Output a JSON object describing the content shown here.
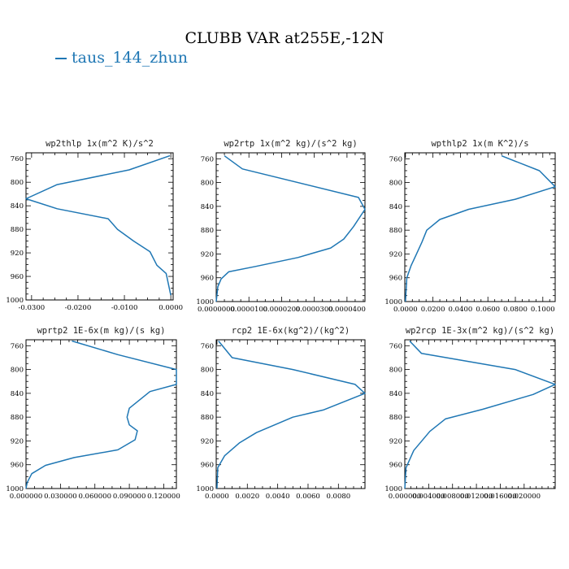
{
  "title": "CLUBB VAR at255E,-12N",
  "legend": {
    "label": "taus_144_zhun",
    "color": "#1f77b4"
  },
  "chart_data": [
    {
      "type": "line",
      "title": "wp2thlp   1x(m^2 K)/s^2",
      "xlim": [
        -0.0312,
        0.0005
      ],
      "ylim": [
        1000,
        750
      ],
      "xticks": [
        -0.03,
        -0.02,
        -0.01,
        0.0
      ],
      "xtick_labels": [
        "-0.0300",
        "-0.0200",
        "-0.0100",
        "0.0000"
      ],
      "yticks": [
        760,
        800,
        840,
        880,
        920,
        960,
        1000
      ],
      "ytick_labels": [
        "760",
        "800",
        "840",
        "880",
        "920",
        "960",
        "1000"
      ],
      "series": [
        {
          "x": [
            -0.0002,
            -0.009,
            -0.0245,
            -0.0312,
            -0.0245,
            -0.0135,
            -0.0115,
            -0.008,
            -0.0045,
            -0.003,
            -0.001,
            0.0
          ],
          "y": [
            755,
            779,
            804,
            828,
            845,
            862,
            880,
            900,
            918,
            941,
            955,
            992
          ]
        }
      ]
    },
    {
      "type": "line",
      "title": "wp2rtp   1x(m^2 kg)/(s^2 kg)",
      "xlim": [
        0,
        4.55e-05
      ],
      "ylim": [
        1000,
        750
      ],
      "xticks": [
        0,
        1e-05,
        2e-05,
        3e-05,
        4e-05
      ],
      "xtick_labels": [
        "0.0000000",
        "0.0000100",
        "0.0000200",
        "0.0000300",
        "0.0000400"
      ],
      "yticks": [
        760,
        800,
        840,
        880,
        920,
        960,
        1000
      ],
      "ytick_labels": [
        "760",
        "800",
        "840",
        "880",
        "920",
        "960",
        "1000"
      ],
      "series": [
        {
          "x": [
            2.5e-06,
            8e-06,
            4.35e-05,
            4.55e-05,
            4.2e-05,
            3.9e-05,
            3.5e-05,
            2.5e-05,
            1.2e-05,
            3.8e-06,
            1.5e-06,
            5e-07,
            0.0
          ],
          "y": [
            755,
            777,
            825,
            845,
            874,
            895,
            910,
            926,
            941,
            950,
            962,
            975,
            1000
          ]
        }
      ]
    },
    {
      "type": "line",
      "title": "wpthlp2   1x(m K^2)/s",
      "xlim": [
        -0.0005,
        0.109
      ],
      "ylim": [
        1000,
        750
      ],
      "xticks": [
        0.0,
        0.02,
        0.04,
        0.06,
        0.08,
        0.1
      ],
      "xtick_labels": [
        "0.0000",
        "0.0200",
        "0.0400",
        "0.0600",
        "0.0800",
        "0.1000"
      ],
      "yticks": [
        760,
        800,
        840,
        880,
        920,
        960,
        1000
      ],
      "ytick_labels": [
        "760",
        "800",
        "840",
        "880",
        "920",
        "960",
        "1000"
      ],
      "series": [
        {
          "x": [
            0.07,
            0.0975,
            0.109,
            0.08,
            0.046,
            0.025,
            0.0155,
            0.012,
            0.008,
            0.004,
            0.001,
            0.0
          ],
          "y": [
            755,
            780,
            807,
            828,
            845,
            862,
            880,
            900,
            920,
            940,
            960,
            1000
          ]
        }
      ]
    },
    {
      "type": "line",
      "title": "wprtp2   1E-6x(m kg)/(s kg)",
      "xlim": [
        0,
        0.131
      ],
      "ylim": [
        1000,
        750
      ],
      "xticks": [
        0.0,
        0.03,
        0.06,
        0.09,
        0.12
      ],
      "xtick_labels": [
        "0.000000",
        "0.030000",
        "0.060000",
        "0.090000",
        "0.120000"
      ],
      "yticks": [
        760,
        800,
        840,
        880,
        920,
        960,
        1000
      ],
      "ytick_labels": [
        "760",
        "800",
        "840",
        "880",
        "920",
        "960",
        "1000"
      ],
      "series": [
        {
          "x": [
            0.04,
            0.08,
            0.131,
            0.131,
            0.108,
            0.09,
            0.088,
            0.09,
            0.097,
            0.095,
            0.08,
            0.042,
            0.017,
            0.005,
            0.001,
            0.0
          ],
          "y": [
            752,
            775,
            800,
            825,
            837,
            865,
            880,
            893,
            903,
            918,
            935,
            948,
            961,
            975,
            990,
            1000
          ]
        }
      ]
    },
    {
      "type": "line",
      "title": "rcp2   1E-6x(kg^2)/(kg^2)",
      "xlim": [
        -5e-05,
        0.00975
      ],
      "ylim": [
        1000,
        750
      ],
      "xticks": [
        0.0,
        0.002,
        0.004,
        0.006,
        0.008
      ],
      "xtick_labels": [
        "0.0000",
        "0.0020",
        "0.0040",
        "0.0060",
        "0.0080"
      ],
      "yticks": [
        760,
        800,
        840,
        880,
        920,
        960,
        1000
      ],
      "ytick_labels": [
        "760",
        "800",
        "840",
        "880",
        "920",
        "960",
        "1000"
      ],
      "series": [
        {
          "x": [
            0.0001,
            0.001,
            0.005,
            0.0091,
            0.00975,
            0.007,
            0.005,
            0.0026,
            0.0015,
            0.0005,
            5e-05,
            0.0
          ],
          "y": [
            752,
            780,
            800,
            825,
            840,
            868,
            880,
            906,
            923,
            945,
            965,
            1000
          ]
        }
      ]
    },
    {
      "type": "line",
      "title": "wp2rcp   1E-3x(m^2 kg)/(s^2 kg)",
      "xlim": [
        0,
        0.0252
      ],
      "ylim": [
        1000,
        750
      ],
      "xticks": [
        0.0,
        0.004,
        0.008,
        0.012,
        0.016,
        0.02
      ],
      "xtick_labels": [
        "0.000000",
        "0.004000",
        "0.008000",
        "0.012000",
        "0.016000",
        "0.020000"
      ],
      "yticks": [
        760,
        800,
        840,
        880,
        920,
        960,
        1000
      ],
      "ytick_labels": [
        "760",
        "800",
        "840",
        "880",
        "920",
        "960",
        "1000"
      ],
      "series": [
        {
          "x": [
            0.0008,
            0.0028,
            0.0185,
            0.0252,
            0.0215,
            0.013,
            0.0068,
            0.0042,
            0.0015,
            0.0002,
            0.0
          ],
          "y": [
            752,
            773,
            800,
            825,
            842,
            867,
            883,
            904,
            936,
            965,
            1000
          ]
        }
      ]
    }
  ]
}
